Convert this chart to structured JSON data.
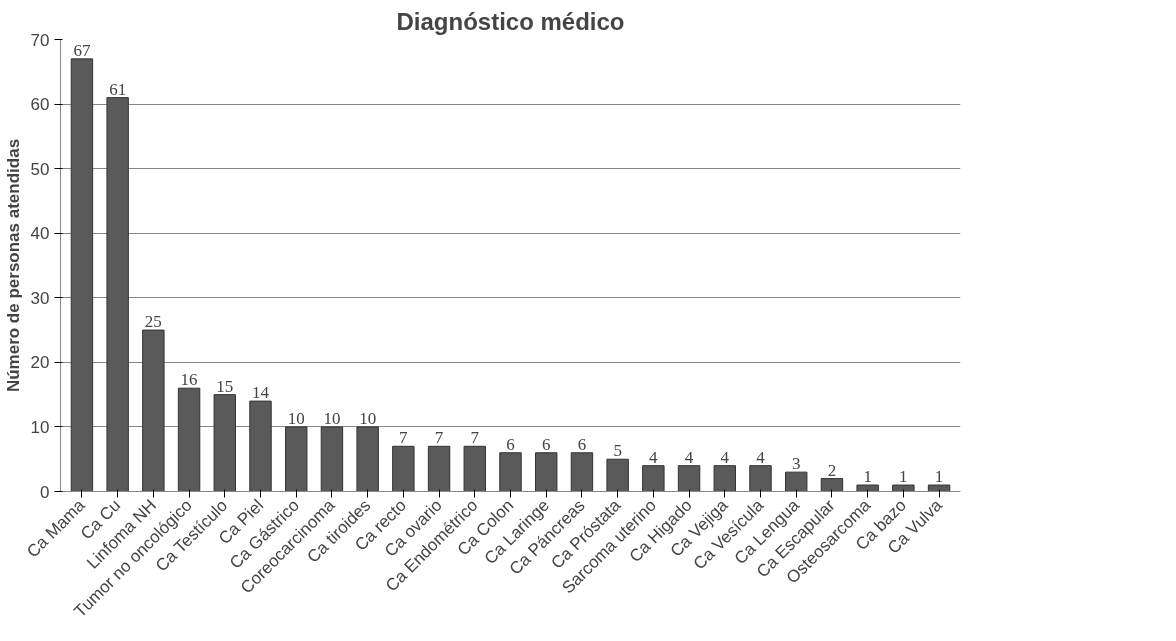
{
  "chart_data": {
    "type": "bar",
    "title": "Diagnóstico médico",
    "ylabel": "Número de personas atendidas",
    "categories": [
      "Ca Mama",
      "Ca Cu",
      "Linfoma NH",
      "Tumor no oncológico",
      "Ca Testículo",
      "Ca Piel",
      "Ca Gástrico",
      "Coreocarcinoma",
      "Ca tiroides",
      "Ca recto",
      "Ca ovario",
      "Ca Endométrico",
      "Ca Colon",
      "Ca Laringe",
      "Ca Páncreas",
      "Ca Próstata",
      "Sarcoma uterino",
      "Ca Higado",
      "Ca Vejiga",
      "Ca Vesícula",
      "Ca Lengua",
      "Ca Escapular",
      "Osteosarcoma",
      "Ca bazo",
      "Ca Vulva"
    ],
    "values": [
      67,
      61,
      25,
      16,
      15,
      14,
      10,
      10,
      10,
      7,
      7,
      7,
      6,
      6,
      6,
      5,
      4,
      4,
      4,
      4,
      3,
      2,
      1,
      1,
      1
    ],
    "color": "#5a5a5a",
    "ylim": [
      0,
      70
    ],
    "yticks": [
      0,
      10,
      20,
      30,
      40,
      50,
      60,
      70
    ],
    "grid": "y",
    "data_labels": true
  }
}
